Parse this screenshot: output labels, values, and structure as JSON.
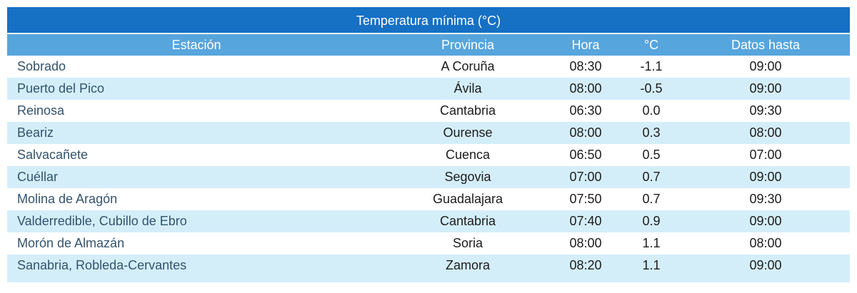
{
  "title": "Temperatura mínima (°C)",
  "chart_data": {
    "type": "table",
    "title": "Temperatura mínima (°C)",
    "columns": [
      "Estación",
      "Provincia",
      "Hora",
      "°C",
      "Datos hasta"
    ],
    "rows": [
      [
        "Sobrado",
        "A Coruña",
        "08:30",
        "-1.1",
        "09:00"
      ],
      [
        "Puerto del Pico",
        "Ávila",
        "08:00",
        "-0.5",
        "09:00"
      ],
      [
        "Reinosa",
        "Cantabria",
        "06:30",
        "0.0",
        "09:30"
      ],
      [
        "Beariz",
        "Ourense",
        "08:00",
        "0.3",
        "08:00"
      ],
      [
        "Salvacañete",
        "Cuenca",
        "06:50",
        "0.5",
        "07:00"
      ],
      [
        "Cuéllar",
        "Segovia",
        "07:00",
        "0.7",
        "09:00"
      ],
      [
        "Molina de Aragón",
        "Guadalajara",
        "07:50",
        "0.7",
        "09:30"
      ],
      [
        "Valderredible, Cubillo de Ebro",
        "Cantabria",
        "07:40",
        "0.9",
        "09:00"
      ],
      [
        "Morón de Almazán",
        "Soria",
        "08:00",
        "1.1",
        "08:00"
      ],
      [
        "Sanabria, Robleda-Cervantes",
        "Zamora",
        "08:20",
        "1.1",
        "09:00"
      ]
    ],
    "layout": {
      "striped": true,
      "first_data_row_background": "white",
      "station_column_alignment": "left",
      "other_columns_alignment": "center"
    }
  },
  "colors": {
    "title_bar": "#1670c4",
    "header_row": "#57a5dd",
    "alt_row": "#d4eef9",
    "station_text": "#33536e",
    "body_text": "#1c1c1c"
  }
}
